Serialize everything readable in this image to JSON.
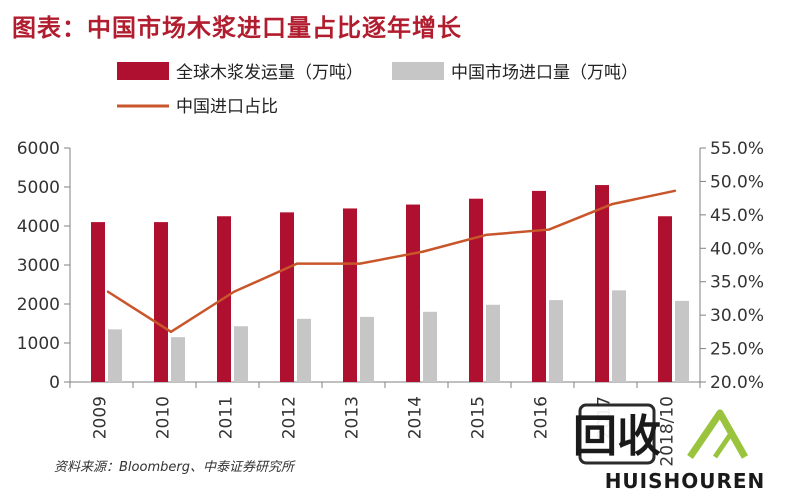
{
  "title": "图表：中国市场木浆进口量占比逐年增长",
  "source": "资料来源：Bloomberg、中泰证券研究所",
  "watermark": {
    "text_main": "回收",
    "text_sub": "HUISHOUREN"
  },
  "colors": {
    "bar_primary": "#b0102f",
    "bar_secondary": "#c6c6c6",
    "line": "#c9562a",
    "axis": "#808080",
    "title": "#b11d2e"
  },
  "chart_data": {
    "type": "bar",
    "categories": [
      "2009",
      "2010",
      "2011",
      "2012",
      "2013",
      "2014",
      "2015",
      "2016",
      "2017",
      "2018/10"
    ],
    "series": [
      {
        "name": "全球木浆发运量（万吨）",
        "type": "bar",
        "axis": "left",
        "values": [
          4100,
          4100,
          4250,
          4350,
          4450,
          4550,
          4700,
          4900,
          5050,
          4250
        ]
      },
      {
        "name": "中国市场进口量（万吨）",
        "type": "bar",
        "axis": "left",
        "values": [
          1350,
          1150,
          1430,
          1620,
          1670,
          1800,
          1980,
          2100,
          2350,
          2080
        ]
      },
      {
        "name": "中国进口占比",
        "type": "line",
        "axis": "right",
        "values": [
          33.5,
          27.5,
          33.5,
          37.7,
          37.7,
          39.5,
          42.0,
          42.8,
          46.6,
          48.6
        ]
      }
    ],
    "y_left": {
      "ylim": [
        0,
        6000
      ],
      "ticks": [
        "0",
        "1000",
        "2000",
        "3000",
        "4000",
        "5000",
        "6000"
      ]
    },
    "y_right": {
      "ylim": [
        20,
        55
      ],
      "ticks": [
        "20.0%",
        "25.0%",
        "30.0%",
        "35.0%",
        "40.0%",
        "45.0%",
        "50.0%",
        "55.0%"
      ]
    },
    "legend_position": "top",
    "grid": false
  }
}
